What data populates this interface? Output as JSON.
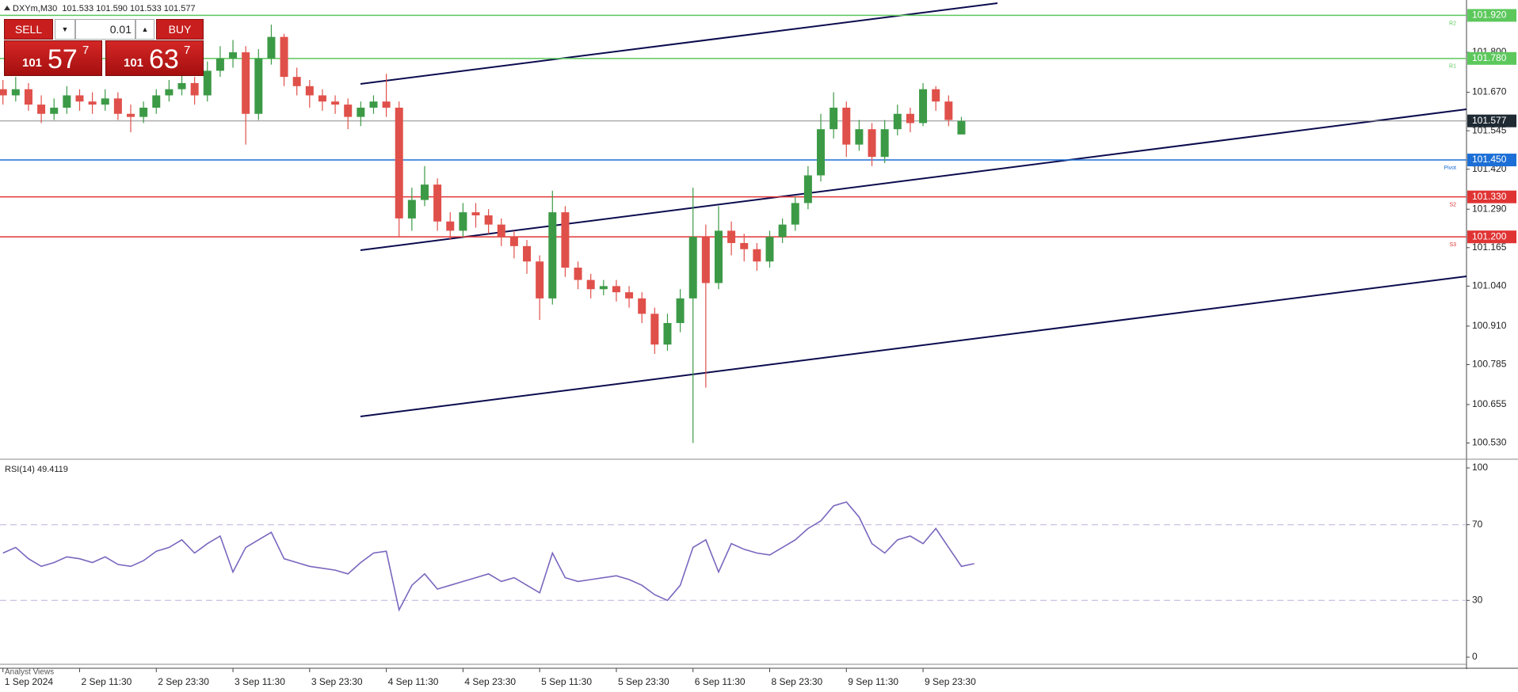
{
  "chart_data": [
    {
      "type": "candlestick",
      "title": "DXYm,M30  101.533 101.590 101.533 101.577",
      "x_labels": [
        "1 Sep 2024",
        "2 Sep 11:30",
        "2 Sep 23:30",
        "3 Sep 11:30",
        "3 Sep 23:30",
        "4 Sep 11:30",
        "4 Sep 23:30",
        "5 Sep 11:30",
        "5 Sep 23:30",
        "6 Sep 11:30",
        "8 Sep 23:30",
        "9 Sep 11:30",
        "9 Sep 23:30"
      ],
      "open": [
        101.68,
        101.66,
        101.68,
        101.63,
        101.6,
        101.62,
        101.66,
        101.64,
        101.63,
        101.65,
        101.6,
        101.59,
        101.62,
        101.66,
        101.68,
        101.7,
        101.66,
        101.74,
        101.78,
        101.8,
        101.6,
        101.78,
        101.85,
        101.72,
        101.69,
        101.66,
        101.64,
        101.63,
        101.59,
        101.62,
        101.64,
        101.62,
        101.26,
        101.32,
        101.37,
        101.25,
        101.22,
        101.28,
        101.27,
        101.24,
        101.2,
        101.17,
        101.12,
        101.0,
        101.28,
        101.1,
        101.06,
        101.03,
        101.04,
        101.02,
        101.0,
        100.95,
        100.85,
        100.92,
        101.0,
        101.2,
        101.05,
        101.22,
        101.18,
        101.16,
        101.12,
        101.2,
        101.24,
        101.31,
        101.4,
        101.55,
        101.62,
        101.5,
        101.55,
        101.46,
        101.55,
        101.6,
        101.57,
        101.68,
        101.64,
        101.533
      ],
      "high": [
        101.71,
        101.72,
        101.7,
        101.66,
        101.65,
        101.69,
        101.68,
        101.67,
        101.68,
        101.67,
        101.63,
        101.64,
        101.68,
        101.71,
        101.73,
        101.72,
        101.77,
        101.82,
        101.84,
        101.82,
        101.81,
        101.89,
        101.86,
        101.75,
        101.71,
        101.68,
        101.66,
        101.65,
        101.64,
        101.66,
        101.73,
        101.64,
        101.36,
        101.43,
        101.39,
        101.28,
        101.31,
        101.31,
        101.29,
        101.26,
        101.22,
        101.19,
        101.14,
        101.35,
        101.3,
        101.12,
        101.08,
        101.06,
        101.06,
        101.04,
        101.02,
        100.97,
        100.95,
        101.03,
        101.36,
        101.24,
        101.3,
        101.25,
        101.21,
        101.18,
        101.22,
        101.26,
        101.33,
        101.43,
        101.6,
        101.67,
        101.64,
        101.58,
        101.57,
        101.58,
        101.63,
        101.62,
        101.7,
        101.69,
        101.66,
        101.59
      ],
      "low": [
        101.63,
        101.64,
        101.61,
        101.57,
        101.58,
        101.6,
        101.61,
        101.6,
        101.61,
        101.58,
        101.54,
        101.57,
        101.6,
        101.64,
        101.66,
        101.63,
        101.64,
        101.72,
        101.75,
        101.5,
        101.58,
        101.76,
        101.69,
        101.66,
        101.62,
        101.61,
        101.6,
        101.55,
        101.56,
        101.6,
        101.59,
        101.2,
        101.22,
        101.3,
        101.22,
        101.19,
        101.2,
        101.23,
        101.21,
        101.17,
        101.13,
        101.08,
        100.93,
        100.98,
        101.07,
        101.03,
        101.0,
        101.01,
        100.99,
        100.97,
        100.92,
        100.82,
        100.83,
        100.89,
        100.53,
        100.71,
        101.03,
        101.14,
        101.12,
        101.09,
        101.1,
        101.18,
        101.22,
        101.29,
        101.38,
        101.52,
        101.46,
        101.48,
        101.43,
        101.44,
        101.53,
        101.54,
        101.56,
        101.61,
        101.56,
        101.533
      ],
      "close": [
        101.66,
        101.68,
        101.63,
        101.6,
        101.62,
        101.66,
        101.64,
        101.63,
        101.65,
        101.6,
        101.59,
        101.62,
        101.66,
        101.68,
        101.7,
        101.66,
        101.74,
        101.78,
        101.8,
        101.6,
        101.78,
        101.85,
        101.72,
        101.69,
        101.66,
        101.64,
        101.63,
        101.59,
        101.62,
        101.64,
        101.62,
        101.26,
        101.32,
        101.37,
        101.25,
        101.22,
        101.28,
        101.27,
        101.24,
        101.2,
        101.17,
        101.12,
        101.0,
        101.28,
        101.1,
        101.06,
        101.03,
        101.04,
        101.02,
        101.0,
        100.95,
        100.85,
        100.92,
        101.0,
        101.2,
        101.05,
        101.22,
        101.18,
        101.16,
        101.12,
        101.2,
        101.24,
        101.31,
        101.4,
        101.55,
        101.62,
        101.5,
        101.55,
        101.46,
        101.55,
        101.6,
        101.57,
        101.68,
        101.64,
        101.58,
        101.577
      ],
      "up_color": "#3c9a46",
      "down_color": "#e0504a",
      "ylim": [
        100.485,
        101.97
      ],
      "yticks": [
        {
          "value": 101.8,
          "label": "101.800"
        },
        {
          "value": 101.67,
          "label": "101.670"
        },
        {
          "value": 101.545,
          "label": "101.545"
        },
        {
          "value": 101.42,
          "label": "101.420"
        },
        {
          "value": 101.29,
          "label": "101.290"
        },
        {
          "value": 101.165,
          "label": "101.165"
        },
        {
          "value": 101.04,
          "label": "101.040"
        },
        {
          "value": 100.91,
          "label": "100.910"
        },
        {
          "value": 100.785,
          "label": "100.785"
        },
        {
          "value": 100.655,
          "label": "100.655"
        },
        {
          "value": 100.53,
          "label": "100.530"
        }
      ],
      "levels": [
        {
          "name": "R2",
          "value": 101.92,
          "label": "101.920",
          "color": "#5cc85c"
        },
        {
          "name": "R1",
          "value": 101.78,
          "label": "101.780",
          "color": "#5cc85c"
        },
        {
          "name": "Pivot",
          "value": 101.45,
          "label": "101.450",
          "color": "#1c6fd6"
        },
        {
          "name": "S2",
          "value": 101.33,
          "label": "101.330",
          "color": "#e03434"
        },
        {
          "name": "S3",
          "value": 101.2,
          "label": "101.200",
          "color": "#e03434"
        }
      ],
      "current_price": 101.577,
      "current_color": "#1f2a33"
    },
    {
      "type": "line",
      "title": "RSI(14) 49.4119",
      "color": "#7a66be",
      "grid_color": "#bfb0dc",
      "values": [
        55,
        58,
        52,
        48,
        50,
        53,
        52,
        50,
        53,
        49,
        48,
        51,
        56,
        58,
        62,
        55,
        60,
        64,
        45,
        58,
        62,
        66,
        52,
        50,
        48,
        47,
        46,
        44,
        50,
        55,
        56,
        25,
        38,
        44,
        36,
        38,
        40,
        42,
        44,
        40,
        42,
        38,
        34,
        55,
        42,
        40,
        41,
        42,
        43,
        41,
        38,
        33,
        30,
        38,
        58,
        62,
        45,
        60,
        57,
        55,
        54,
        58,
        62,
        68,
        72,
        80,
        82,
        74,
        60,
        55,
        62,
        64,
        60,
        68,
        58,
        48,
        49.4119
      ],
      "ylim": [
        0,
        100
      ],
      "yticks": [
        100,
        70,
        30,
        0
      ]
    }
  ],
  "trade_panel": {
    "sell": "SELL",
    "lot": "0.01",
    "buy": "BUY",
    "bid": {
      "big": "101",
      "pips": "57",
      "point": "7"
    },
    "ask": {
      "big": "101",
      "pips": "63",
      "point": "7"
    }
  },
  "footer_tab": "Analyst Views"
}
